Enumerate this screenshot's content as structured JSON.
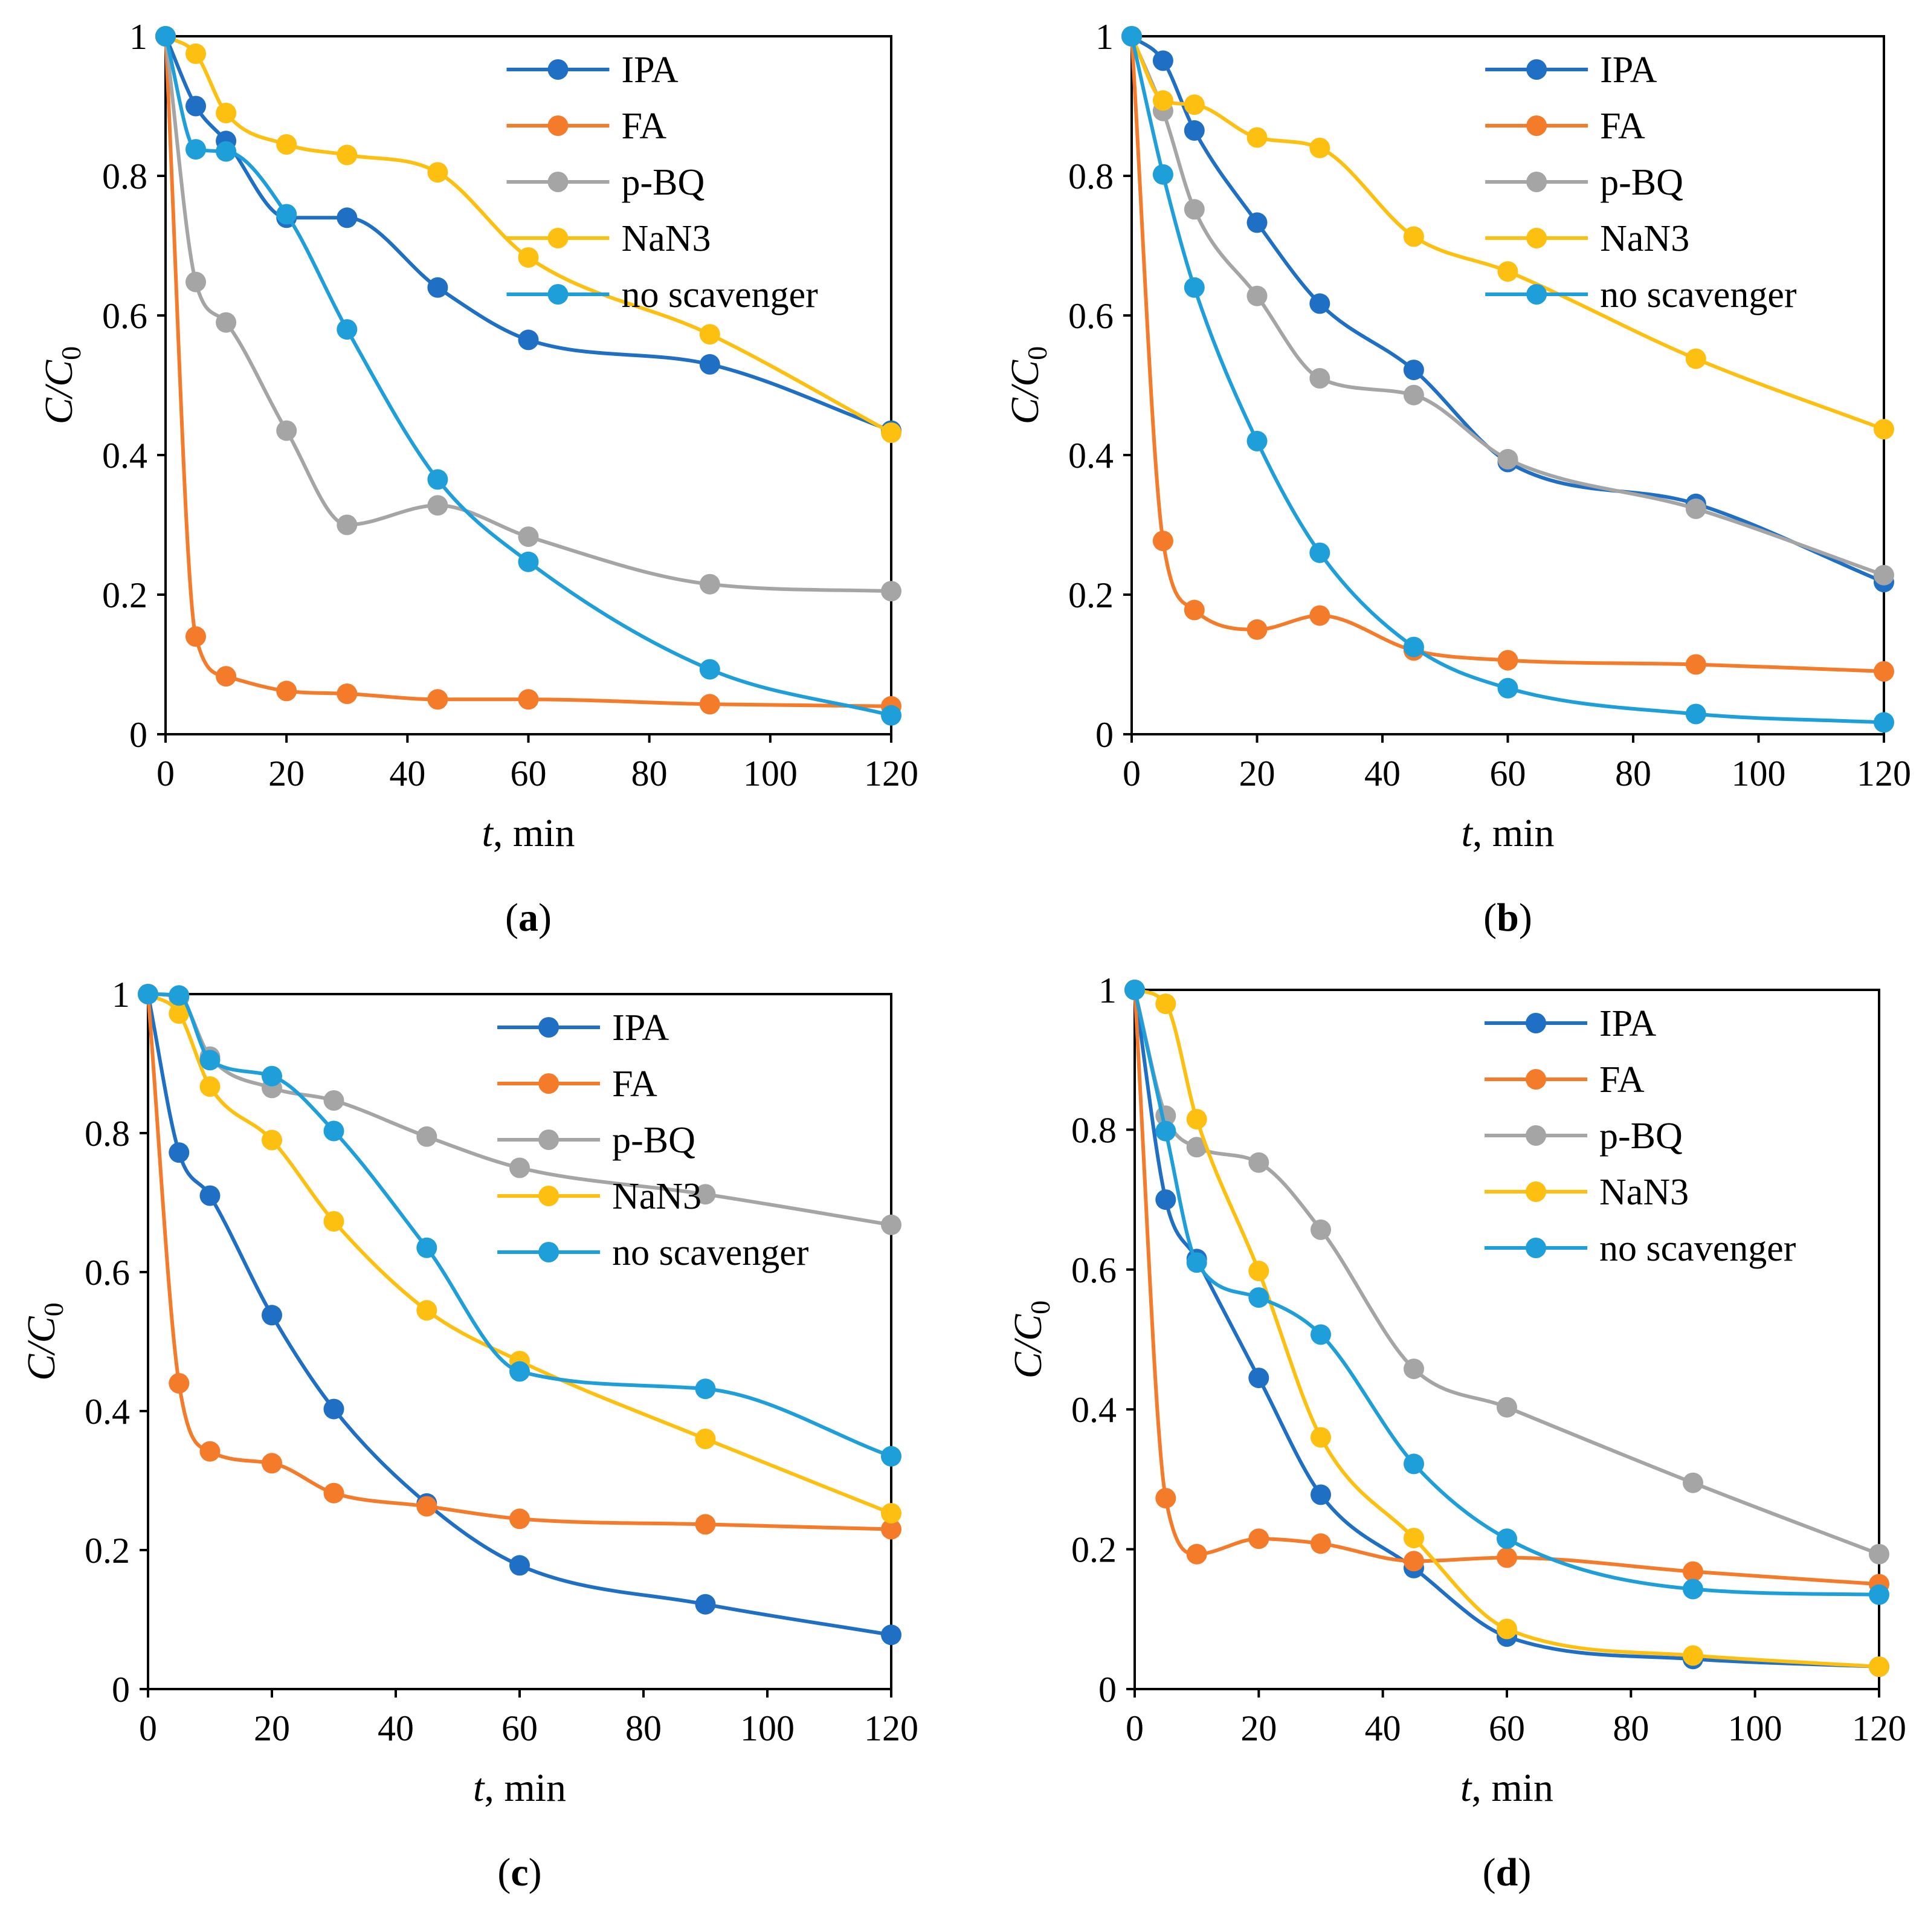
{
  "colors": {
    "IPA": "#1f6fc4",
    "FA": "#f47b2a",
    "p-BQ": "#a5a5a5",
    "NaN3": "#fdc010",
    "no scavenger": "#1e9fd9"
  },
  "chart_data": [
    {
      "type": "line",
      "panel": "(a)",
      "panel_letter": "a",
      "xlabel": "t, min",
      "xlabel_var": "t",
      "xlabel_rest": ", min",
      "ylabel": "C/C0",
      "xlim": [
        0,
        120
      ],
      "ylim": [
        0,
        1
      ],
      "xticks": [
        "0",
        "20",
        "40",
        "60",
        "80",
        "100",
        "120"
      ],
      "yticks": [
        "0",
        "0.2",
        "0.4",
        "0.6",
        "0.8",
        "1"
      ],
      "legend_position": "top-right",
      "x": [
        0,
        5,
        10,
        20,
        30,
        45,
        60,
        90,
        120
      ],
      "series": [
        {
          "name": "IPA",
          "values": [
            1.0,
            0.9,
            0.85,
            0.74,
            0.74,
            0.64,
            0.565,
            0.53,
            0.435
          ]
        },
        {
          "name": "FA",
          "values": [
            1.0,
            0.14,
            0.083,
            0.062,
            0.058,
            0.05,
            0.05,
            0.043,
            0.04
          ]
        },
        {
          "name": "p-BQ",
          "values": [
            1.0,
            0.648,
            0.59,
            0.435,
            0.3,
            0.328,
            0.283,
            0.215,
            0.205
          ]
        },
        {
          "name": "NaN3",
          "values": [
            1.0,
            0.975,
            0.89,
            0.845,
            0.83,
            0.805,
            0.683,
            0.573,
            0.432
          ]
        },
        {
          "name": "no scavenger",
          "values": [
            1.0,
            0.838,
            0.835,
            0.745,
            0.58,
            0.365,
            0.247,
            0.093,
            0.027
          ]
        }
      ]
    },
    {
      "type": "line",
      "panel": "(b)",
      "panel_letter": "b",
      "xlabel": "t, min",
      "xlabel_var": "t",
      "xlabel_rest": ", min",
      "ylabel": "C/C0",
      "xlim": [
        0,
        120
      ],
      "ylim": [
        0,
        1
      ],
      "xticks": [
        "0",
        "20",
        "40",
        "60",
        "80",
        "100",
        "120"
      ],
      "yticks": [
        "0",
        "0.2",
        "0.4",
        "0.6",
        "0.8",
        "1"
      ],
      "legend_position": "top-right",
      "x": [
        0,
        5,
        10,
        20,
        30,
        45,
        60,
        90,
        120
      ],
      "series": [
        {
          "name": "IPA",
          "values": [
            1.0,
            0.965,
            0.865,
            0.733,
            0.617,
            0.522,
            0.39,
            0.33,
            0.218
          ]
        },
        {
          "name": "FA",
          "values": [
            1.0,
            0.277,
            0.178,
            0.15,
            0.17,
            0.12,
            0.106,
            0.1,
            0.09
          ]
        },
        {
          "name": "p-BQ",
          "values": [
            1.0,
            0.893,
            0.752,
            0.628,
            0.51,
            0.486,
            0.394,
            0.323,
            0.228
          ]
        },
        {
          "name": "NaN3",
          "values": [
            1.0,
            0.908,
            0.902,
            0.855,
            0.84,
            0.713,
            0.663,
            0.538,
            0.437
          ]
        },
        {
          "name": "no scavenger",
          "values": [
            1.0,
            0.802,
            0.64,
            0.42,
            0.26,
            0.125,
            0.066,
            0.029,
            0.017
          ]
        }
      ]
    },
    {
      "type": "line",
      "panel": "(c)",
      "panel_letter": "c",
      "xlabel": "t, min",
      "xlabel_var": "t",
      "xlabel_rest": ", min",
      "ylabel": "C/C0",
      "xlim": [
        0,
        120
      ],
      "ylim": [
        0,
        1
      ],
      "xticks": [
        "0",
        "20",
        "40",
        "60",
        "80",
        "100",
        "120"
      ],
      "yticks": [
        "0",
        "0.2",
        "0.4",
        "0.6",
        "0.8",
        "1"
      ],
      "legend_position": "top-right",
      "x": [
        0,
        5,
        10,
        20,
        30,
        45,
        60,
        90,
        120
      ],
      "series": [
        {
          "name": "IPA",
          "values": [
            1.0,
            0.772,
            0.71,
            0.538,
            0.403,
            0.267,
            0.178,
            0.122,
            0.078
          ]
        },
        {
          "name": "FA",
          "values": [
            1.0,
            0.44,
            0.342,
            0.325,
            0.282,
            0.263,
            0.245,
            0.237,
            0.23
          ]
        },
        {
          "name": "p-BQ",
          "values": [
            1.0,
            0.995,
            0.91,
            0.865,
            0.847,
            0.795,
            0.75,
            0.712,
            0.668
          ]
        },
        {
          "name": "NaN3",
          "values": [
            1.0,
            0.972,
            0.867,
            0.79,
            0.673,
            0.545,
            0.472,
            0.36,
            0.253
          ]
        },
        {
          "name": "no scavenger",
          "values": [
            1.0,
            0.998,
            0.905,
            0.882,
            0.803,
            0.635,
            0.457,
            0.432,
            0.335
          ]
        }
      ]
    },
    {
      "type": "line",
      "panel": "(d)",
      "panel_letter": "d",
      "xlabel": "t, min",
      "xlabel_var": "t",
      "xlabel_rest": ", min",
      "ylabel": "C/C0",
      "xlim": [
        0,
        120
      ],
      "ylim": [
        0,
        1
      ],
      "xticks": [
        "0",
        "20",
        "40",
        "60",
        "80",
        "100",
        "120"
      ],
      "yticks": [
        "0",
        "0.2",
        "0.4",
        "0.6",
        "0.8",
        "1"
      ],
      "legend_position": "top-right",
      "x": [
        0,
        5,
        10,
        20,
        30,
        45,
        60,
        90,
        120
      ],
      "series": [
        {
          "name": "IPA",
          "values": [
            1.0,
            0.7,
            0.615,
            0.445,
            0.278,
            0.173,
            0.075,
            0.043,
            0.032
          ]
        },
        {
          "name": "FA",
          "values": [
            1.0,
            0.273,
            0.193,
            0.215,
            0.208,
            0.183,
            0.188,
            0.168,
            0.15
          ]
        },
        {
          "name": "p-BQ",
          "values": [
            1.0,
            0.82,
            0.775,
            0.753,
            0.657,
            0.458,
            0.403,
            0.295,
            0.193
          ]
        },
        {
          "name": "NaN3",
          "values": [
            1.0,
            0.98,
            0.815,
            0.598,
            0.36,
            0.216,
            0.086,
            0.048,
            0.032
          ]
        },
        {
          "name": "no scavenger",
          "values": [
            1.0,
            0.798,
            0.61,
            0.56,
            0.507,
            0.322,
            0.215,
            0.143,
            0.135
          ]
        }
      ]
    }
  ]
}
